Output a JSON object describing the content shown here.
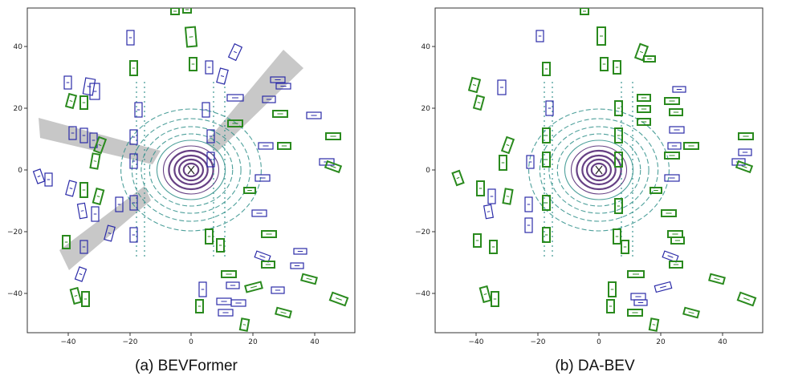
{
  "figure": {
    "panels": [
      {
        "caption": "(a) BEVFormer",
        "x_ticks": [
          "−40",
          "−20",
          "0",
          "20",
          "40"
        ],
        "y_ticks": [
          "40",
          "20",
          "0",
          "−20",
          "−40"
        ]
      },
      {
        "caption": "(b) DA-BEV",
        "x_ticks": [
          "−40",
          "−20",
          "0",
          "20",
          "40"
        ],
        "y_ticks": [
          "40",
          "20",
          "0",
          "−20",
          "−40"
        ]
      }
    ],
    "colors": {
      "ground_truth_box": "#2a8a1e",
      "prediction_box": "#2b2ba8",
      "highlight_region": "#9a9a9a",
      "lidar_near": "#4b1f6e",
      "lidar_far": "#2f8f8a"
    }
  }
}
